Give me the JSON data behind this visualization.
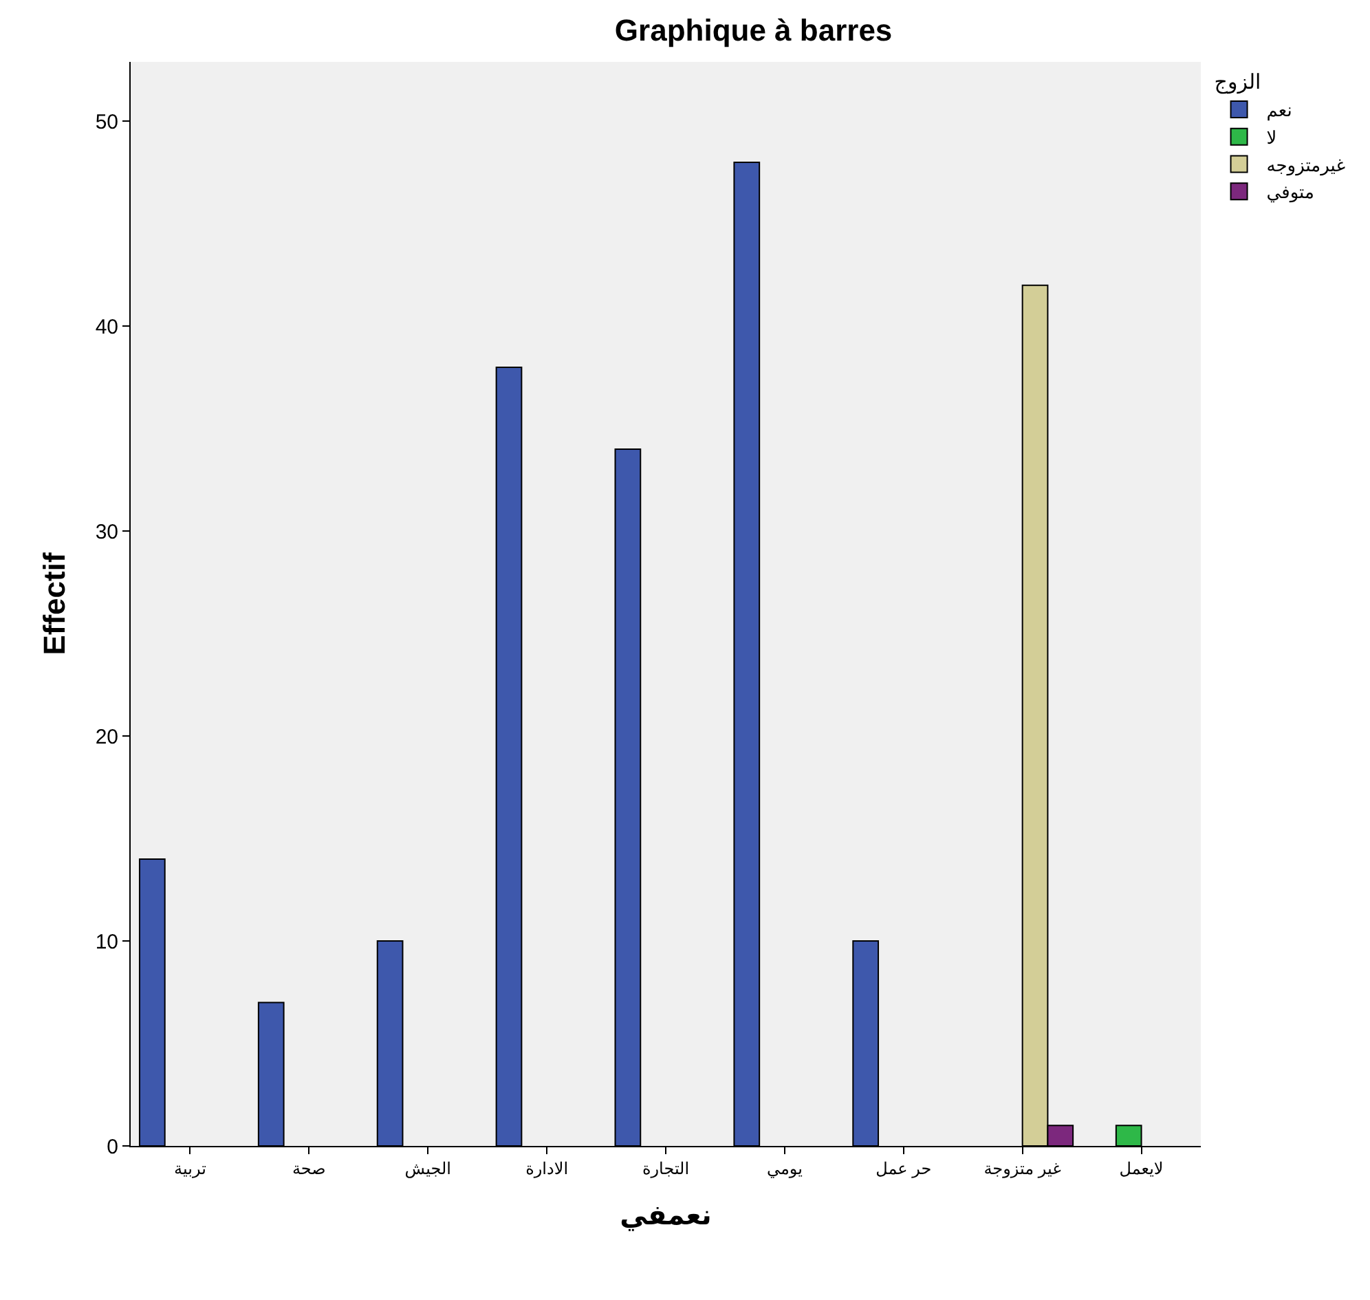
{
  "chart_data": {
    "type": "bar",
    "title": "Graphique à barres",
    "xlabel": "نعمفي",
    "ylabel": "Effectif",
    "legend_title": "الزوج",
    "categories": [
      "تربية",
      "صحة",
      "الجيش",
      "الادارة",
      "التجارة",
      "يومي",
      "حر عمل",
      "غير متزوجة",
      "لايعمل"
    ],
    "series": [
      {
        "name": "نعم",
        "color": "#3e58ac",
        "values": [
          14,
          7,
          10,
          38,
          34,
          48,
          10,
          null,
          null
        ]
      },
      {
        "name": "لا",
        "color": "#2eb848",
        "values": [
          null,
          null,
          null,
          null,
          null,
          null,
          null,
          null,
          1
        ]
      },
      {
        "name": "غيرمتزوجه",
        "color": "#d3ce97",
        "values": [
          null,
          null,
          null,
          null,
          null,
          null,
          null,
          42,
          null
        ]
      },
      {
        "name": "متوفي",
        "color": "#7c287d",
        "values": [
          null,
          null,
          null,
          null,
          null,
          null,
          null,
          1,
          null
        ]
      }
    ],
    "ylim": [
      0,
      52.9
    ],
    "yticks": [
      0,
      10,
      20,
      30,
      40,
      50
    ],
    "grid": false,
    "legend": "top right"
  }
}
